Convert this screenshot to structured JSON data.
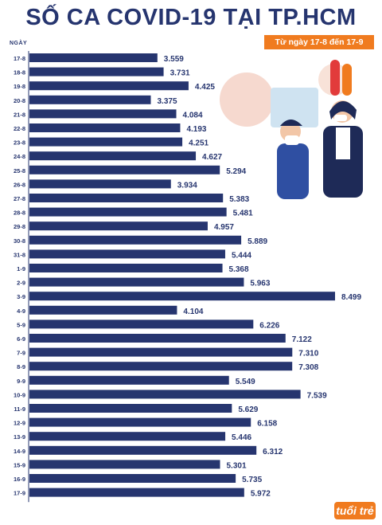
{
  "header": {
    "title": "SỐ CA COVID-19 TẠI TP.HCM",
    "date_range": "Từ ngày 17-8 đến 17-9",
    "axis_header": "NGÀY"
  },
  "brand": {
    "logo": "tuổi trẻ"
  },
  "colors": {
    "bar": "#26356f",
    "accent": "#f07b1f",
    "text": "#26356f"
  },
  "chart_data": {
    "type": "bar",
    "orientation": "horizontal",
    "title": "SỐ CA COVID-19 TẠI TP.HCM",
    "categories": [
      "17-8",
      "18-8",
      "19-8",
      "20-8",
      "21-8",
      "22-8",
      "23-8",
      "24-8",
      "25-8",
      "26-8",
      "27-8",
      "28-8",
      "29-8",
      "30-8",
      "31-8",
      "1-9",
      "2-9",
      "3-9",
      "4-9",
      "5-9",
      "6-9",
      "7-9",
      "8-9",
      "9-9",
      "10-9",
      "11-9",
      "12-9",
      "13-9",
      "14-9",
      "15-9",
      "16-9",
      "17-9"
    ],
    "values": [
      3559,
      3731,
      4425,
      3375,
      4084,
      4193,
      4251,
      4627,
      5294,
      3934,
      5383,
      5481,
      4957,
      5889,
      5444,
      5368,
      5963,
      8499,
      4104,
      6226,
      7122,
      7310,
      7308,
      5549,
      7539,
      5629,
      6158,
      5446,
      6312,
      5301,
      5735,
      5972
    ],
    "value_labels": [
      "3.559",
      "3.731",
      "4.425",
      "3.375",
      "4.084",
      "4.193",
      "4.251",
      "4.627",
      "5.294",
      "3.934",
      "5.383",
      "5.481",
      "4.957",
      "5.889",
      "5.444",
      "5.368",
      "5.963",
      "8.499",
      "4.104",
      "6.226",
      "7.122",
      "7.310",
      "7.308",
      "5.549",
      "7.539",
      "5.629",
      "6.158",
      "5.446",
      "6.312",
      "5.301",
      "5.735",
      "5.972"
    ],
    "xlim": [
      0,
      8499
    ]
  }
}
